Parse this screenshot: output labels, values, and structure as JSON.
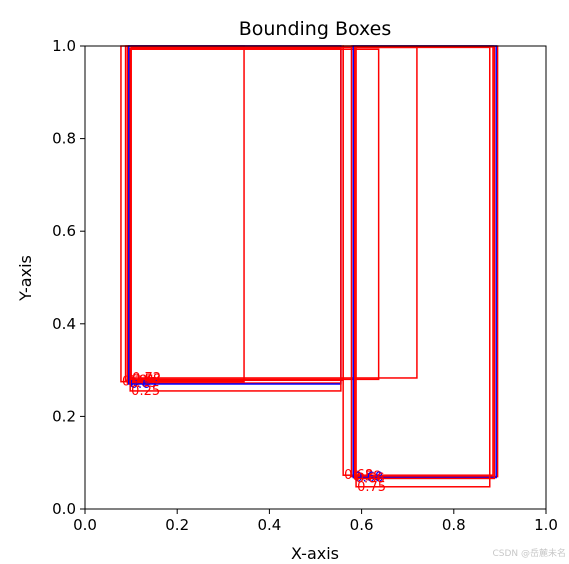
{
  "chart_data": {
    "type": "bounding-boxes",
    "title": "Bounding Boxes",
    "xlabel": "X-axis",
    "ylabel": "Y-axis",
    "xlim": [
      0,
      1
    ],
    "ylim": [
      0,
      1
    ],
    "xticks": [
      "0.0",
      "0.2",
      "0.4",
      "0.6",
      "0.8",
      "1.0"
    ],
    "yticks": [
      "0.0",
      "0.2",
      "0.4",
      "0.6",
      "0.8",
      "1.0"
    ],
    "grid": false,
    "boxes": [
      {
        "x0": 0.078,
        "y0": 0.275,
        "x1": 0.345,
        "y1": 1.0,
        "color": "#ff0000",
        "label": "0.77"
      },
      {
        "x0": 0.088,
        "y0": 0.278,
        "x1": 0.56,
        "y1": 1.0,
        "color": "#ff0000",
        "label": "0.81"
      },
      {
        "x0": 0.092,
        "y0": 0.272,
        "x1": 0.555,
        "y1": 1.0,
        "color": "#ff0000",
        "label": "0.65"
      },
      {
        "x0": 0.095,
        "y0": 0.27,
        "x1": 0.555,
        "y1": 1.0,
        "color": "#0000ff",
        "label": "0.67"
      },
      {
        "x0": 0.1,
        "y0": 0.283,
        "x1": 0.72,
        "y1": 0.997,
        "color": "#ff0000",
        "label": "0.72"
      },
      {
        "x0": 0.1,
        "y0": 0.28,
        "x1": 0.637,
        "y1": 0.993,
        "color": "#ff0000",
        "label": "0.58"
      },
      {
        "x0": 0.098,
        "y0": 0.255,
        "x1": 0.555,
        "y1": 0.995,
        "color": "#ff0000",
        "label": "0.25"
      },
      {
        "x0": 0.56,
        "y0": 0.073,
        "x1": 0.885,
        "y1": 1.0,
        "color": "#ff0000",
        "label": "0.68"
      },
      {
        "x0": 0.578,
        "y0": 0.07,
        "x1": 0.895,
        "y1": 1.0,
        "color": "#ff0000",
        "label": "0.58"
      },
      {
        "x0": 0.582,
        "y0": 0.068,
        "x1": 0.892,
        "y1": 1.0,
        "color": "#0000ff",
        "label": "0.68"
      },
      {
        "x0": 0.585,
        "y0": 0.066,
        "x1": 0.888,
        "y1": 0.998,
        "color": "#ff0000",
        "label": "0.66"
      },
      {
        "x0": 0.588,
        "y0": 0.048,
        "x1": 0.878,
        "y1": 0.997,
        "color": "#ff0000",
        "label": "0.75"
      }
    ]
  },
  "watermark": "CSDN @岳麓未名"
}
